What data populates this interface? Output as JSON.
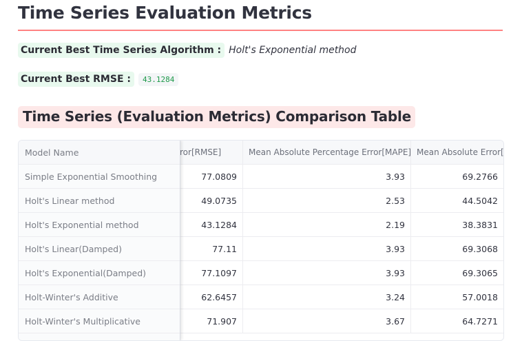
{
  "page": {
    "title": "Time Series Evaluation Metrics",
    "best_algorithm_label": "Current Best Time Series Algorithm :",
    "best_algorithm_value": "Holt's Exponential method",
    "best_rmse_label": "Current Best RMSE :",
    "best_rmse_value": "43.1284",
    "table_title": "Time Series (Evaluation Metrics) Comparison Table"
  },
  "table": {
    "headers": {
      "model": "Model Name",
      "rmse": "ror[RMSE]",
      "mape": "Mean Absolute Percentage Error[MAPE]",
      "mae": "Mean Absolute Error[MAE]"
    },
    "rows": [
      {
        "model": "Simple Exponential Smoothing",
        "rmse": "77.0809",
        "mape": "3.93",
        "mae": "69.2766"
      },
      {
        "model": "Holt's Linear method",
        "rmse": "49.0735",
        "mape": "2.53",
        "mae": "44.5042"
      },
      {
        "model": "Holt's Exponential method",
        "rmse": "43.1284",
        "mape": "2.19",
        "mae": "38.3831"
      },
      {
        "model": "Holt's Linear(Damped)",
        "rmse": "77.11",
        "mape": "3.93",
        "mae": "69.3068"
      },
      {
        "model": "Holt's Exponential(Damped)",
        "rmse": "77.1097",
        "mape": "3.93",
        "mae": "69.3065"
      },
      {
        "model": "Holt-Winter's Additive",
        "rmse": "62.6457",
        "mape": "3.24",
        "mae": "57.0018"
      },
      {
        "model": "Holt-Winter's Multiplicative",
        "rmse": "71.907",
        "mape": "3.67",
        "mae": "64.7271"
      }
    ]
  },
  "colors": {
    "title_rule": "#ff6c6c",
    "label_bg_green": "#e8f9ee",
    "subheader_bg_red": "#fde8e8",
    "code_text": "#1f9a4a"
  }
}
